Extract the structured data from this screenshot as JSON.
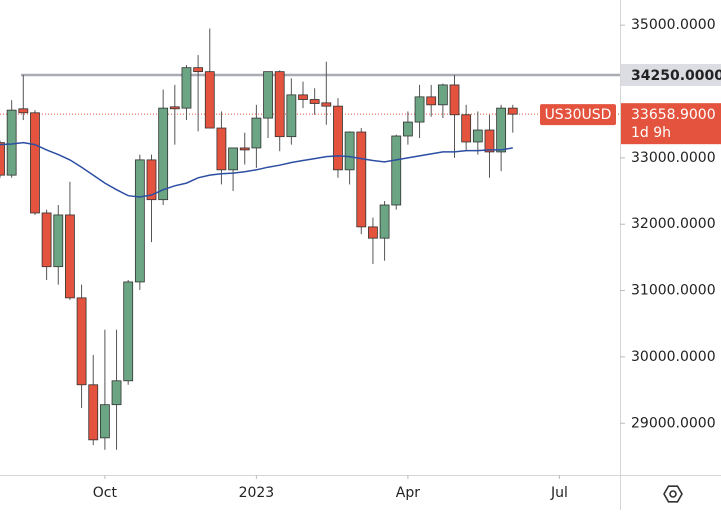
{
  "chart_data": {
    "type": "candlestick",
    "up_color": "#6ba583",
    "down_color": "#e4533e",
    "xlim": [
      0,
      53.2
    ],
    "xticks": [
      {
        "value": 9,
        "label": "Oct"
      },
      {
        "value": 22,
        "label": "2023"
      },
      {
        "value": 35,
        "label": "Apr"
      },
      {
        "value": 48,
        "label": "Jul"
      }
    ],
    "ylim": [
      28220,
      35380
    ],
    "yticks": [
      {
        "value": 29000,
        "label": "29000.0000"
      },
      {
        "value": 30000,
        "label": "30000.0000"
      },
      {
        "value": 31000,
        "label": "31000.0000"
      },
      {
        "value": 32000,
        "label": "32000.0000"
      },
      {
        "value": 33000,
        "label": "33000.0000"
      },
      {
        "value": 35000,
        "label": "35000.0000"
      }
    ],
    "x": [
      0,
      1,
      2,
      3,
      4,
      5,
      6,
      7,
      8,
      9,
      10,
      11,
      12,
      13,
      14,
      15,
      16,
      17,
      18,
      19,
      20,
      21,
      22,
      23,
      24,
      25,
      26,
      27,
      28,
      29,
      30,
      31,
      32,
      33,
      34,
      35,
      36,
      37,
      38,
      39,
      40,
      41,
      42,
      43,
      44
    ],
    "series": [
      {
        "name": "US30USD",
        "open": [
          33230,
          32740,
          33740,
          33680,
          32170,
          31360,
          32140,
          30890,
          29580,
          28780,
          29280,
          29640,
          31130,
          32970,
          32370,
          33770,
          33750,
          34360,
          34300,
          33450,
          32820,
          33150,
          33150,
          33600,
          34300,
          33320,
          33950,
          33880,
          33830,
          33780,
          32820,
          33390,
          31960,
          31790,
          32290,
          33330,
          33540,
          33920,
          33800,
          34100,
          33650,
          33240,
          33420,
          33090,
          33750
        ],
        "high": [
          33260,
          33870,
          34250,
          33720,
          32220,
          32290,
          32640,
          31090,
          30030,
          30410,
          30410,
          31160,
          33050,
          33050,
          34030,
          34100,
          34400,
          34550,
          34950,
          33700,
          33150,
          33380,
          33800,
          34300,
          34320,
          34200,
          34150,
          34050,
          34450,
          33900,
          33400,
          33450,
          32100,
          32350,
          33350,
          33700,
          34100,
          34100,
          34120,
          34250,
          33800,
          33700,
          33650,
          33800,
          33800
        ],
        "low": [
          32700,
          32700,
          33570,
          32140,
          31160,
          31090,
          30860,
          29230,
          28670,
          28600,
          28600,
          29580,
          31010,
          31730,
          32290,
          33200,
          33570,
          33400,
          33450,
          32600,
          32500,
          32900,
          32850,
          33300,
          33100,
          33200,
          33750,
          33650,
          33500,
          32700,
          32600,
          31850,
          31400,
          31450,
          32220,
          33200,
          33300,
          33620,
          33600,
          33000,
          33100,
          33050,
          32700,
          32800,
          33380
        ],
        "close": [
          32740,
          33720,
          33680,
          32170,
          31360,
          32140,
          30890,
          29580,
          28750,
          29280,
          29640,
          31130,
          32970,
          32370,
          33750,
          33740,
          34360,
          34300,
          33450,
          32820,
          33150,
          33120,
          33600,
          34300,
          33320,
          33950,
          33880,
          33820,
          33780,
          32820,
          33390,
          31960,
          31790,
          32290,
          33330,
          33540,
          33920,
          33800,
          34100,
          33650,
          33240,
          33420,
          33090,
          33750,
          33658.9
        ]
      },
      {
        "color": "#2c4ea3",
        "values": [
          33200,
          33210,
          33230,
          33200,
          33120,
          33050,
          32970,
          32860,
          32740,
          32620,
          32520,
          32430,
          32410,
          32440,
          32520,
          32580,
          32620,
          32700,
          32740,
          32760,
          32770,
          32790,
          32820,
          32860,
          32890,
          32930,
          32960,
          32990,
          33020,
          33030,
          33020,
          32990,
          32960,
          32940,
          32970,
          33000,
          33030,
          33060,
          33090,
          33090,
          33110,
          33110,
          33120,
          33120,
          33150
        ]
      }
    ],
    "horizontal_line": {
      "value": 34250,
      "label": "34250.0000",
      "color": "#a9abb5",
      "start_x": 1.8
    },
    "price_line": {
      "symbol": "US30USD",
      "value": 33658.9,
      "label": "33658.9000",
      "countdown": "1d 9h",
      "color": "#e4533e"
    }
  }
}
